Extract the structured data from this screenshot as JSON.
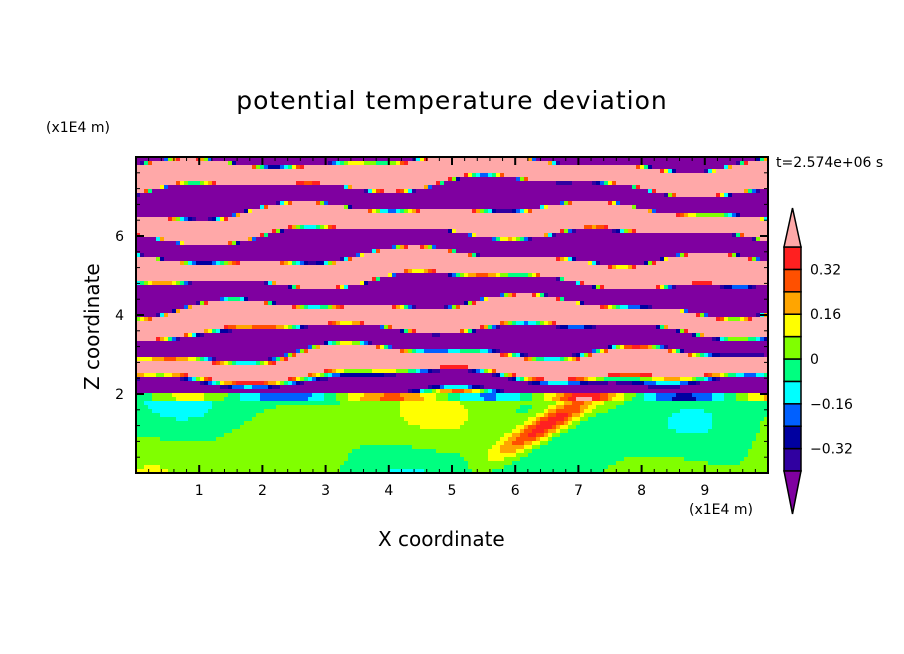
{
  "chart_data": {
    "type": "heatmap",
    "title": "potential temperature deviation",
    "xlabel": "X coordinate",
    "ylabel": "Z coordinate",
    "x_unit": "(x1E4 m)",
    "y_unit": "(x1E4 m)",
    "time_label": "t=2.574e+06 s",
    "xlim": [
      0,
      10
    ],
    "ylim": [
      0,
      8
    ],
    "x_ticks": [
      1,
      2,
      3,
      4,
      5,
      6,
      7,
      8,
      9
    ],
    "y_ticks": [
      2,
      4,
      6
    ],
    "colorbar": {
      "levels": [
        -0.4,
        -0.32,
        -0.24,
        -0.16,
        -0.08,
        0,
        0.08,
        0.16,
        0.24,
        0.32,
        0.4
      ],
      "tick_labels": [
        "0.32",
        "0.16",
        "0",
        "−0.16",
        "−0.32"
      ],
      "tick_values": [
        0.32,
        0.16,
        0,
        -0.16,
        -0.32
      ],
      "colors": [
        "#3000a0",
        "#0000a0",
        "#0060ff",
        "#00ffff",
        "#00ff80",
        "#80ff00",
        "#ffff00",
        "#ffa500",
        "#ff5000",
        "#ff2020"
      ],
      "under_color": "#7f00a0",
      "over_color": "#ffa8a8",
      "extend": "both"
    }
  }
}
